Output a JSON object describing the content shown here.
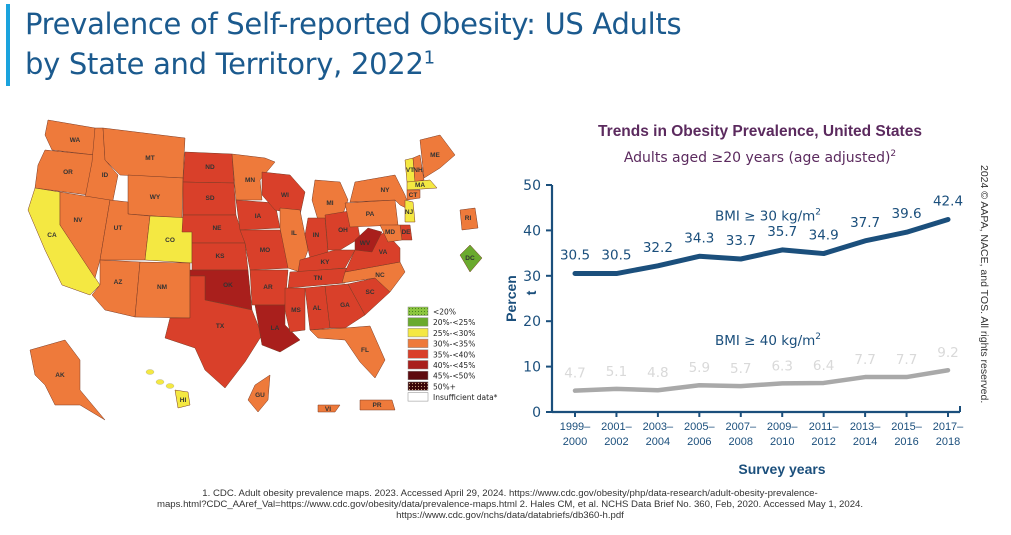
{
  "header": {
    "title_line1": "Prevalence of Self-reported Obesity: US Adults",
    "title_line2": "by State and Territory, 2022",
    "title_superscript": "1",
    "accent_color": "#1ba3dd",
    "title_color": "#1b5a8e"
  },
  "map": {
    "legend": [
      {
        "label": "<20%",
        "color": "#8cc63f",
        "pattern": "dotted"
      },
      {
        "label": "20%-<25%",
        "color": "#6aaa2e"
      },
      {
        "label": "25%-<30%",
        "color": "#f4e842"
      },
      {
        "label": "30%-<35%",
        "color": "#ee7a3b"
      },
      {
        "label": "35%-<40%",
        "color": "#d9402a"
      },
      {
        "label": "40%-<45%",
        "color": "#a91f1c"
      },
      {
        "label": "45%-<50%",
        "color": "#5e0b0f"
      },
      {
        "label": "50%+",
        "color": "#3a0508",
        "pattern": "dotted"
      },
      {
        "label": "Insufficient data*",
        "color": "#ffffff"
      }
    ],
    "states": [
      {
        "abbr": "WA",
        "category": "30%-<35%"
      },
      {
        "abbr": "OR",
        "category": "30%-<35%"
      },
      {
        "abbr": "CA",
        "category": "25%-<30%"
      },
      {
        "abbr": "ID",
        "category": "30%-<35%"
      },
      {
        "abbr": "NV",
        "category": "30%-<35%"
      },
      {
        "abbr": "MT",
        "category": "30%-<35%"
      },
      {
        "abbr": "WY",
        "category": "30%-<35%"
      },
      {
        "abbr": "UT",
        "category": "30%-<35%"
      },
      {
        "abbr": "CO",
        "category": "25%-<30%"
      },
      {
        "abbr": "AZ",
        "category": "30%-<35%"
      },
      {
        "abbr": "NM",
        "category": "30%-<35%"
      },
      {
        "abbr": "ND",
        "category": "35%-<40%"
      },
      {
        "abbr": "SD",
        "category": "35%-<40%"
      },
      {
        "abbr": "NE",
        "category": "35%-<40%"
      },
      {
        "abbr": "KS",
        "category": "35%-<40%"
      },
      {
        "abbr": "OK",
        "category": "40%-<45%"
      },
      {
        "abbr": "TX",
        "category": "35%-<40%"
      },
      {
        "abbr": "MN",
        "category": "30%-<35%"
      },
      {
        "abbr": "IA",
        "category": "35%-<40%"
      },
      {
        "abbr": "MO",
        "category": "35%-<40%"
      },
      {
        "abbr": "AR",
        "category": "35%-<40%"
      },
      {
        "abbr": "LA",
        "category": "40%-<45%"
      },
      {
        "abbr": "WI",
        "category": "35%-<40%"
      },
      {
        "abbr": "IL",
        "category": "30%-<35%"
      },
      {
        "abbr": "MI",
        "category": "30%-<35%"
      },
      {
        "abbr": "IN",
        "category": "35%-<40%"
      },
      {
        "abbr": "OH",
        "category": "35%-<40%"
      },
      {
        "abbr": "KY",
        "category": "35%-<40%"
      },
      {
        "abbr": "TN",
        "category": "35%-<40%"
      },
      {
        "abbr": "MS",
        "category": "35%-<40%"
      },
      {
        "abbr": "AL",
        "category": "35%-<40%"
      },
      {
        "abbr": "GA",
        "category": "35%-<40%"
      },
      {
        "abbr": "FL",
        "category": "30%-<35%"
      },
      {
        "abbr": "SC",
        "category": "35%-<40%"
      },
      {
        "abbr": "NC",
        "category": "30%-<35%"
      },
      {
        "abbr": "VA",
        "category": "35%-<40%"
      },
      {
        "abbr": "WV",
        "category": "40%-<45%"
      },
      {
        "abbr": "PA",
        "category": "30%-<35%"
      },
      {
        "abbr": "NY",
        "category": "30%-<35%"
      },
      {
        "abbr": "VT",
        "category": "25%-<30%"
      },
      {
        "abbr": "NH",
        "category": "30%-<35%"
      },
      {
        "abbr": "ME",
        "category": "30%-<35%"
      },
      {
        "abbr": "MA",
        "category": "25%-<30%"
      },
      {
        "abbr": "CT",
        "category": "30%-<35%"
      },
      {
        "abbr": "RI",
        "category": "30%-<35%"
      },
      {
        "abbr": "NJ",
        "category": "25%-<30%"
      },
      {
        "abbr": "DE",
        "category": "35%-<40%"
      },
      {
        "abbr": "MD",
        "category": "30%-<35%"
      },
      {
        "abbr": "DC",
        "category": "20%-<25%"
      },
      {
        "abbr": "AK",
        "category": "30%-<35%"
      },
      {
        "abbr": "HI",
        "category": "25%-<30%"
      },
      {
        "abbr": "GU",
        "category": "30%-<35%"
      },
      {
        "abbr": "VI",
        "category": "30%-<35%"
      },
      {
        "abbr": "PR",
        "category": "30%-<35%"
      }
    ]
  },
  "chart_data": {
    "type": "line",
    "title": "Trends in Obesity Prevalence, United States",
    "subtitle": "Adults aged ≥20 years (age adjusted)",
    "subtitle_superscript": "2",
    "xlabel": "Survey years",
    "ylabel": "Percent",
    "ylabel_display": [
      "Percen",
      "t"
    ],
    "ylim": [
      0,
      50
    ],
    "yticks": [
      0,
      10,
      20,
      30,
      40,
      50
    ],
    "grid": false,
    "categories": [
      [
        "1999–",
        "2000"
      ],
      [
        "2001–",
        "2002"
      ],
      [
        "2003–",
        "2004"
      ],
      [
        "2005–",
        "2006"
      ],
      [
        "2007–",
        "2008"
      ],
      [
        "2009–",
        "2010"
      ],
      [
        "2011–",
        "2012"
      ],
      [
        "2013–",
        "2014"
      ],
      [
        "2015–",
        "2016"
      ],
      [
        "2017–",
        "2018"
      ]
    ],
    "series": [
      {
        "name": "BMI ≥ 30 kg/m",
        "name_superscript": "2",
        "color": "#1b4f7c",
        "label_color": "#1b4f7c",
        "values": [
          30.5,
          30.5,
          32.2,
          34.3,
          33.7,
          35.7,
          34.9,
          37.7,
          39.6,
          42.4
        ]
      },
      {
        "name": "BMI ≥ 40 kg/m",
        "name_superscript": "2",
        "color": "#a9a9a9",
        "label_color": "#d9d9d9",
        "name_color": "#1b4f7c",
        "values": [
          4.7,
          5.1,
          4.8,
          5.9,
          5.7,
          6.3,
          6.4,
          7.7,
          7.7,
          9.2
        ]
      }
    ],
    "title_color": "#5b2a5e",
    "axis_color": "#1b4f7c"
  },
  "footnotes": {
    "line1": "1. CDC. Adult obesity prevalence maps. 2023. Accessed April 29, 2024. https://www.cdc.gov/obesity/php/data-research/adult-obesity-prevalence-",
    "line2": "maps.html?CDC_AAref_Val=https://www.cdc.gov/obesity/data/prevalence-maps.html 2. Hales CM, et al. NCHS Data Brief No. 360, Feb, 2020. Accessed May 1, 2024.",
    "line3": "https://www.cdc.gov/nchs/data/databriefs/db360-h.pdf"
  },
  "copyright": "2024 © AAPA, NACE, and TOS. All rights reserved."
}
